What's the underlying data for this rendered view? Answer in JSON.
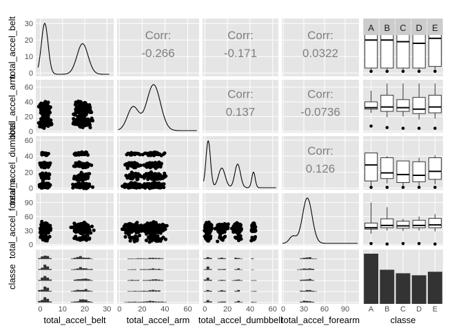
{
  "chart_data": {
    "type": "scatter-matrix",
    "variables": [
      "total_accel_belt",
      "total_accel_arm",
      "total_accel_dumbbell",
      "total_accel_forearm",
      "classe"
    ],
    "numeric_ticks": [
      {
        "variable": "total_accel_belt",
        "ticks": [
          0,
          10,
          20,
          30
        ],
        "tick_labels": [
          "0",
          "10",
          "20",
          "30"
        ]
      },
      {
        "variable": "total_accel_arm",
        "ticks": [
          0,
          20,
          40,
          60
        ],
        "tick_labels": [
          "0",
          "20",
          "40",
          "60"
        ]
      },
      {
        "variable": "total_accel_dumbbell",
        "ticks": [
          0,
          20,
          40,
          60
        ],
        "tick_labels": [
          "0",
          "20",
          "40",
          "60"
        ]
      },
      {
        "variable": "total_accel_forearm",
        "ticks": [
          0,
          30,
          60,
          90
        ],
        "tick_labels": [
          "0",
          "30",
          "60",
          "90"
        ]
      }
    ],
    "classes": [
      "A",
      "B",
      "C",
      "D",
      "E"
    ],
    "correlations": [
      {
        "row": "total_accel_belt",
        "col": "total_accel_arm",
        "label": "Corr:",
        "value": "-0.266"
      },
      {
        "row": "total_accel_belt",
        "col": "total_accel_dumbbell",
        "label": "Corr:",
        "value": "-0.171"
      },
      {
        "row": "total_accel_belt",
        "col": "total_accel_forearm",
        "label": "Corr:",
        "value": "0.0322"
      },
      {
        "row": "total_accel_arm",
        "col": "total_accel_dumbbell",
        "label": "Corr:",
        "value": "0.137"
      },
      {
        "row": "total_accel_arm",
        "col": "total_accel_forearm",
        "label": "Corr:",
        "value": "-0.0736"
      },
      {
        "row": "total_accel_dumbbell",
        "col": "total_accel_forearm",
        "label": "Corr:",
        "value": "0.126"
      }
    ],
    "class_counts": [
      {
        "classe": "A",
        "relative_height": 1.0
      },
      {
        "classe": "B",
        "relative_height": 0.68
      },
      {
        "classe": "C",
        "relative_height": 0.61
      },
      {
        "classe": "D",
        "relative_height": 0.57
      },
      {
        "classe": "E",
        "relative_height": 0.64
      }
    ],
    "boxplots": {
      "total_accel_belt": [
        [
          1,
          2,
          3,
          20,
          25,
          29
        ],
        [
          1,
          2,
          3,
          20,
          25,
          29
        ],
        [
          1,
          2,
          3,
          19,
          25,
          29
        ],
        [
          1,
          2,
          3,
          18,
          25,
          30
        ],
        [
          1,
          2,
          4,
          21,
          27,
          31
        ]
      ],
      "total_accel_arm": [
        [
          7,
          25,
          30,
          32,
          40,
          55
        ],
        [
          5,
          19,
          27,
          33,
          49,
          65
        ],
        [
          4,
          20,
          27,
          32,
          43,
          65
        ],
        [
          4,
          16,
          24,
          30,
          46,
          65
        ],
        [
          4,
          17,
          25,
          33,
          49,
          65
        ]
      ],
      "total_accel_dumbbell": [
        [
          1,
          3,
          9,
          29,
          44,
          44
        ],
        [
          1,
          6,
          12,
          19,
          38,
          40
        ],
        [
          1,
          3,
          7,
          17,
          34,
          34
        ],
        [
          1,
          3,
          8,
          16,
          33,
          38
        ],
        [
          1,
          5,
          11,
          21,
          38,
          41
        ]
      ],
      "total_accel_forearm": [
        [
          2,
          23,
          33,
          36,
          46,
          90
        ],
        [
          1,
          30,
          36,
          41,
          55,
          80
        ],
        [
          2,
          29,
          35,
          40,
          50,
          55
        ],
        [
          2,
          30,
          36,
          41,
          52,
          60
        ],
        [
          1,
          28,
          36,
          42,
          56,
          65
        ]
      ]
    },
    "facet_header_labels": [
      "A",
      "B",
      "C",
      "D",
      "E"
    ],
    "background": "#e5e5e5",
    "grid_color": "#ffffff",
    "mark_color": "#000000",
    "corr_text_color": "#7f7f7f"
  }
}
